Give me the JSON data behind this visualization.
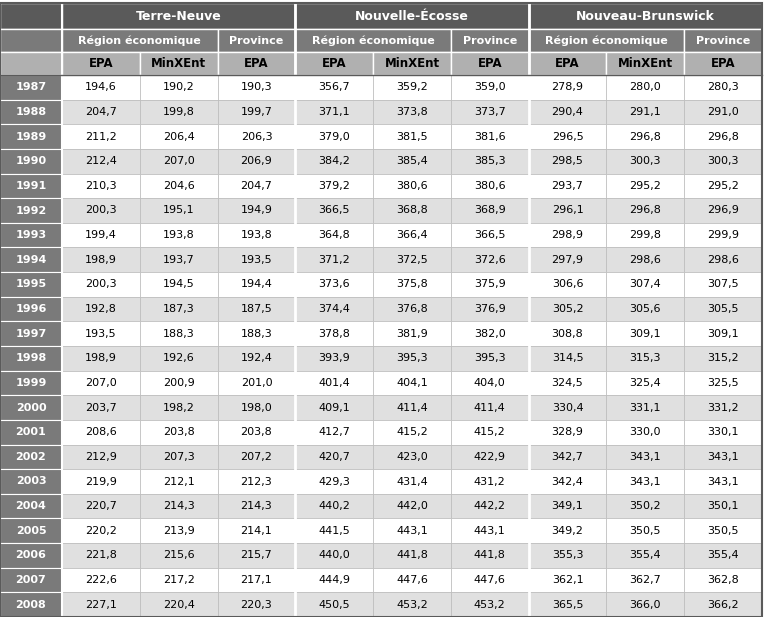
{
  "years": [
    "1987",
    "1988",
    "1989",
    "1990",
    "1991",
    "1992",
    "1993",
    "1994",
    "1995",
    "1996",
    "1997",
    "1998",
    "1999",
    "2000",
    "2001",
    "2002",
    "2003",
    "2004",
    "2005",
    "2006",
    "2007",
    "2008"
  ],
  "col_labels": [
    "EPA",
    "MinXEnt",
    "EPA",
    "EPA",
    "MinXEnt",
    "EPA",
    "EPA",
    "MinXEnt",
    "EPA"
  ],
  "data": [
    [
      194.6,
      190.2,
      190.3,
      356.7,
      359.2,
      359.0,
      278.9,
      280.0,
      280.3
    ],
    [
      204.7,
      199.8,
      199.7,
      371.1,
      373.8,
      373.7,
      290.4,
      291.1,
      291.0
    ],
    [
      211.2,
      206.4,
      206.3,
      379.0,
      381.5,
      381.6,
      296.5,
      296.8,
      296.8
    ],
    [
      212.4,
      207.0,
      206.9,
      384.2,
      385.4,
      385.3,
      298.5,
      300.3,
      300.3
    ],
    [
      210.3,
      204.6,
      204.7,
      379.2,
      380.6,
      380.6,
      293.7,
      295.2,
      295.2
    ],
    [
      200.3,
      195.1,
      194.9,
      366.5,
      368.8,
      368.9,
      296.1,
      296.8,
      296.9
    ],
    [
      199.4,
      193.8,
      193.8,
      364.8,
      366.4,
      366.5,
      298.9,
      299.8,
      299.9
    ],
    [
      198.9,
      193.7,
      193.5,
      371.2,
      372.5,
      372.6,
      297.9,
      298.6,
      298.6
    ],
    [
      200.3,
      194.5,
      194.4,
      373.6,
      375.8,
      375.9,
      306.6,
      307.4,
      307.5
    ],
    [
      192.8,
      187.3,
      187.5,
      374.4,
      376.8,
      376.9,
      305.2,
      305.6,
      305.5
    ],
    [
      193.5,
      188.3,
      188.3,
      378.8,
      381.9,
      382.0,
      308.8,
      309.1,
      309.1
    ],
    [
      198.9,
      192.6,
      192.4,
      393.9,
      395.3,
      395.3,
      314.5,
      315.3,
      315.2
    ],
    [
      207.0,
      200.9,
      201.0,
      401.4,
      404.1,
      404.0,
      324.5,
      325.4,
      325.5
    ],
    [
      203.7,
      198.2,
      198.0,
      409.1,
      411.4,
      411.4,
      330.4,
      331.1,
      331.2
    ],
    [
      208.6,
      203.8,
      203.8,
      412.7,
      415.2,
      415.2,
      328.9,
      330.0,
      330.1
    ],
    [
      212.9,
      207.3,
      207.2,
      420.7,
      423.0,
      422.9,
      342.7,
      343.1,
      343.1
    ],
    [
      219.9,
      212.1,
      212.3,
      429.3,
      431.4,
      431.2,
      342.4,
      343.1,
      343.1
    ],
    [
      220.7,
      214.3,
      214.3,
      440.2,
      442.0,
      442.2,
      349.1,
      350.2,
      350.1
    ],
    [
      220.2,
      213.9,
      214.1,
      441.5,
      443.1,
      443.1,
      349.2,
      350.5,
      350.5
    ],
    [
      221.8,
      215.6,
      215.7,
      440.0,
      441.8,
      441.8,
      355.3,
      355.4,
      355.4
    ],
    [
      222.6,
      217.2,
      217.1,
      444.9,
      447.6,
      447.6,
      362.1,
      362.7,
      362.8
    ],
    [
      227.1,
      220.4,
      220.3,
      450.5,
      453.2,
      453.2,
      365.5,
      366.0,
      366.2
    ]
  ],
  "header1_bg": "#5a5a5a",
  "header2_bg": "#7a7a7a",
  "header3_bg": "#b0b0b0",
  "year_bg": "#7a7a7a",
  "row_odd_bg": "#ffffff",
  "row_even_bg": "#e0e0e0",
  "header_text_white": "#ffffff",
  "header3_text": "#000000",
  "data_text": "#000000",
  "border_dark": "#5a5a5a",
  "border_light": "#aaaaaa",
  "fig_w": 7.65,
  "fig_h": 6.17,
  "dpi": 100
}
